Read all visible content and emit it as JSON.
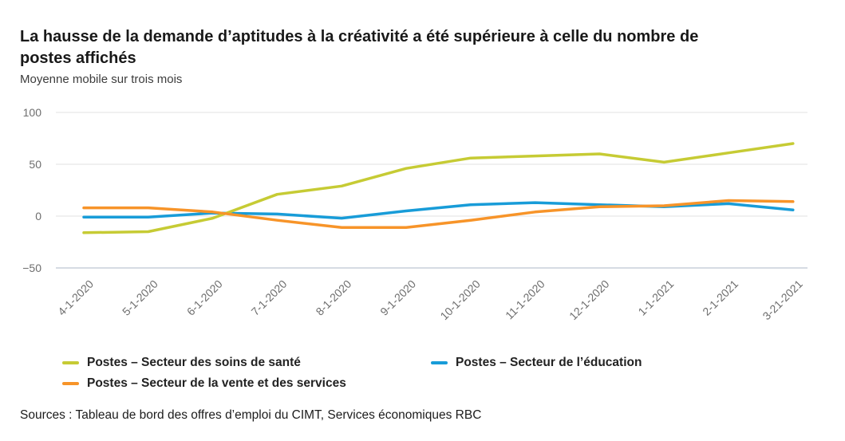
{
  "chart_data": {
    "type": "line",
    "title": "La hausse de la demande d’aptitudes à la créativité a été supérieure à celle du nombre de postes affichés",
    "subtitle": "Moyenne mobile sur trois mois",
    "categories": [
      "4-1-2020",
      "5-1-2020",
      "6-1-2020",
      "7-1-2020",
      "8-1-2020",
      "9-1-2020",
      "10-1-2020",
      "11-1-2020",
      "12-1-2020",
      "1-1-2021",
      "2-1-2021",
      "3-21-2021"
    ],
    "series": [
      {
        "key": "soins-de-sante",
        "name": "Postes – Secteur des soins de santé",
        "color": "#c6cb34",
        "values": [
          -16,
          -15,
          -2,
          21,
          29,
          46,
          56,
          58,
          60,
          52,
          61,
          70
        ]
      },
      {
        "key": "education",
        "name": "Postes – Secteur de l’éducation",
        "color": "#189cd8",
        "values": [
          -1,
          -1,
          3,
          2,
          -2,
          5,
          11,
          13,
          11,
          9,
          12,
          6
        ]
      },
      {
        "key": "vente-et-services",
        "name": "Postes – Secteur de la vente et des services",
        "color": "#f79429",
        "values": [
          8,
          8,
          4,
          -4,
          -11,
          -11,
          -4,
          4,
          9,
          10,
          15,
          14
        ]
      }
    ],
    "yticks": [
      {
        "value": 100,
        "label": "100"
      },
      {
        "value": 50,
        "label": "50"
      },
      {
        "value": 0,
        "label": "0"
      },
      {
        "value": -50,
        "label": "−50"
      }
    ],
    "ylim": [
      -50,
      100
    ],
    "grid": true,
    "legend_position": "bottom",
    "legend_order": [
      0,
      1,
      2
    ],
    "draw_order": [
      1,
      0,
      2
    ]
  },
  "source": {
    "text": "Sources : Tableau de bord des offres d’emploi du CIMT, Services économiques RBC"
  }
}
